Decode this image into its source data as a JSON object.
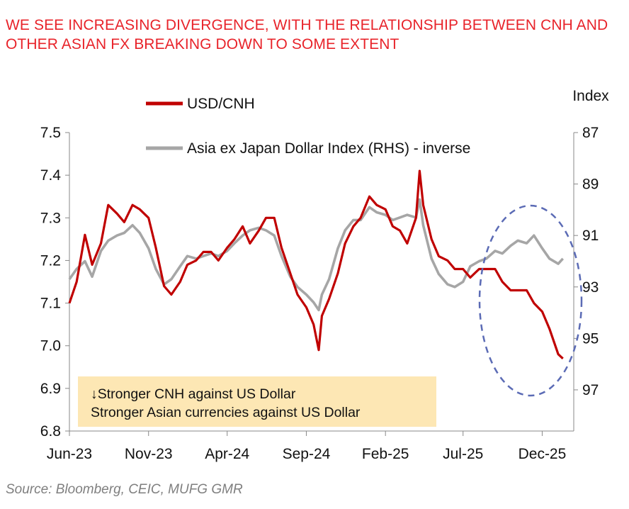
{
  "title": "WE SEE INCREASING DIVERGENCE, WITH THE RELATIONSHIP BETWEEN CNH AND OTHER ASIAN FX BREAKING DOWN TO SOME EXTENT",
  "source": "Source: Bloomberg, CEIC, MUFG GMR",
  "callout": {
    "line1": "↓Stronger CNH against US Dollar",
    "line2": "Stronger Asian currencies against US Dollar"
  },
  "colors": {
    "usdcnh": "#c00000",
    "asia": "#a6a6a6",
    "title": "#e8232a",
    "highlight_circle": "#5b6bb5",
    "callout_bg": "#fde7b4"
  },
  "chart_data": {
    "type": "line",
    "left_axis": {
      "label": "",
      "ylim": [
        6.8,
        7.5
      ],
      "ticks": [
        "7.5",
        "7.4",
        "7.3",
        "7.2",
        "7.1",
        "7.0",
        "6.9",
        "6.8"
      ]
    },
    "right_axis": {
      "label": "Index",
      "ylim": [
        87,
        98.6
      ],
      "inverted": true,
      "ticks": [
        "87",
        "89",
        "91",
        "93",
        "95",
        "97"
      ]
    },
    "x_ticks": [
      "Jun-23",
      "Nov-23",
      "Apr-24",
      "Sep-24",
      "Feb-25",
      "Jul-25",
      "Dec-25"
    ],
    "x_tick_dates": [
      "2023-06",
      "2023-11",
      "2024-04",
      "2024-09",
      "2025-02",
      "2025-07",
      "2025-12"
    ],
    "legend": [
      "USD/CNH",
      "Asia ex Japan Dollar Index (RHS) - inverse"
    ],
    "series": [
      {
        "name": "USD/CNH",
        "axis": "left",
        "x": [
          "2023-06-01",
          "2023-06-15",
          "2023-07-01",
          "2023-07-15",
          "2023-08-01",
          "2023-08-15",
          "2023-09-01",
          "2023-09-15",
          "2023-10-01",
          "2023-10-15",
          "2023-11-01",
          "2023-11-15",
          "2023-12-01",
          "2023-12-15",
          "2024-01-01",
          "2024-01-15",
          "2024-02-01",
          "2024-02-15",
          "2024-03-01",
          "2024-03-15",
          "2024-04-01",
          "2024-04-15",
          "2024-05-01",
          "2024-05-15",
          "2024-06-01",
          "2024-06-15",
          "2024-07-01",
          "2024-07-15",
          "2024-08-01",
          "2024-08-15",
          "2024-09-01",
          "2024-09-15",
          "2024-09-25",
          "2024-10-01",
          "2024-10-15",
          "2024-11-01",
          "2024-11-15",
          "2024-12-01",
          "2024-12-15",
          "2025-01-01",
          "2025-01-15",
          "2025-02-01",
          "2025-02-15",
          "2025-03-01",
          "2025-03-15",
          "2025-04-01",
          "2025-04-08",
          "2025-04-15",
          "2025-05-01",
          "2025-05-15",
          "2025-06-01",
          "2025-06-15",
          "2025-07-01",
          "2025-07-15",
          "2025-08-01",
          "2025-08-15",
          "2025-09-01",
          "2025-09-15",
          "2025-10-01",
          "2025-10-15",
          "2025-11-01",
          "2025-11-15",
          "2025-12-01",
          "2025-12-15",
          "2026-01-01",
          "2026-01-10"
        ],
        "values": [
          7.1,
          7.15,
          7.26,
          7.19,
          7.24,
          7.33,
          7.31,
          7.29,
          7.33,
          7.32,
          7.3,
          7.23,
          7.14,
          7.12,
          7.15,
          7.19,
          7.2,
          7.22,
          7.22,
          7.2,
          7.23,
          7.25,
          7.28,
          7.24,
          7.27,
          7.3,
          7.3,
          7.23,
          7.17,
          7.12,
          7.09,
          7.05,
          6.99,
          7.07,
          7.11,
          7.17,
          7.24,
          7.28,
          7.3,
          7.35,
          7.33,
          7.32,
          7.28,
          7.27,
          7.24,
          7.3,
          7.41,
          7.33,
          7.25,
          7.21,
          7.2,
          7.18,
          7.18,
          7.16,
          7.18,
          7.18,
          7.18,
          7.15,
          7.13,
          7.13,
          7.13,
          7.1,
          7.08,
          7.04,
          6.98,
          6.97
        ]
      },
      {
        "name": "Asia ex Japan Dollar Index (RHS) - inverse",
        "axis": "right",
        "x": [
          "2023-06-01",
          "2023-06-15",
          "2023-07-01",
          "2023-07-15",
          "2023-08-01",
          "2023-08-15",
          "2023-09-01",
          "2023-09-15",
          "2023-10-01",
          "2023-10-15",
          "2023-11-01",
          "2023-11-15",
          "2023-12-01",
          "2023-12-15",
          "2024-01-01",
          "2024-01-15",
          "2024-02-01",
          "2024-02-15",
          "2024-03-01",
          "2024-03-15",
          "2024-04-01",
          "2024-04-15",
          "2024-05-01",
          "2024-05-15",
          "2024-06-01",
          "2024-06-15",
          "2024-07-01",
          "2024-07-15",
          "2024-08-01",
          "2024-08-15",
          "2024-09-01",
          "2024-09-15",
          "2024-09-25",
          "2024-10-01",
          "2024-10-15",
          "2024-11-01",
          "2024-11-15",
          "2024-12-01",
          "2024-12-15",
          "2025-01-01",
          "2025-01-15",
          "2025-02-01",
          "2025-02-15",
          "2025-03-01",
          "2025-03-15",
          "2025-04-01",
          "2025-04-08",
          "2025-04-15",
          "2025-05-01",
          "2025-05-15",
          "2025-06-01",
          "2025-06-15",
          "2025-07-01",
          "2025-07-15",
          "2025-08-01",
          "2025-08-15",
          "2025-09-01",
          "2025-09-15",
          "2025-10-01",
          "2025-10-15",
          "2025-11-01",
          "2025-11-15",
          "2025-12-01",
          "2025-12-15",
          "2026-01-01",
          "2026-01-10"
        ],
        "values": [
          92.7,
          92.3,
          92.0,
          92.6,
          91.6,
          91.2,
          91.0,
          90.9,
          90.6,
          90.9,
          91.5,
          92.3,
          92.9,
          92.7,
          92.2,
          91.8,
          91.9,
          91.8,
          91.7,
          91.8,
          91.6,
          91.3,
          91.0,
          90.8,
          90.7,
          90.8,
          91.0,
          91.8,
          92.6,
          93.0,
          93.3,
          93.6,
          93.9,
          93.3,
          92.7,
          91.5,
          90.8,
          90.4,
          90.4,
          89.9,
          90.1,
          90.2,
          90.4,
          90.3,
          90.2,
          90.3,
          89.6,
          90.6,
          91.9,
          92.5,
          92.9,
          93.0,
          92.8,
          92.2,
          92.0,
          91.9,
          91.6,
          91.7,
          91.4,
          91.2,
          91.3,
          91.0,
          91.5,
          91.9,
          92.1,
          91.9
        ]
      }
    ],
    "annotation": "↓Stronger CNH against US Dollar / Stronger Asian currencies against US Dollar"
  }
}
